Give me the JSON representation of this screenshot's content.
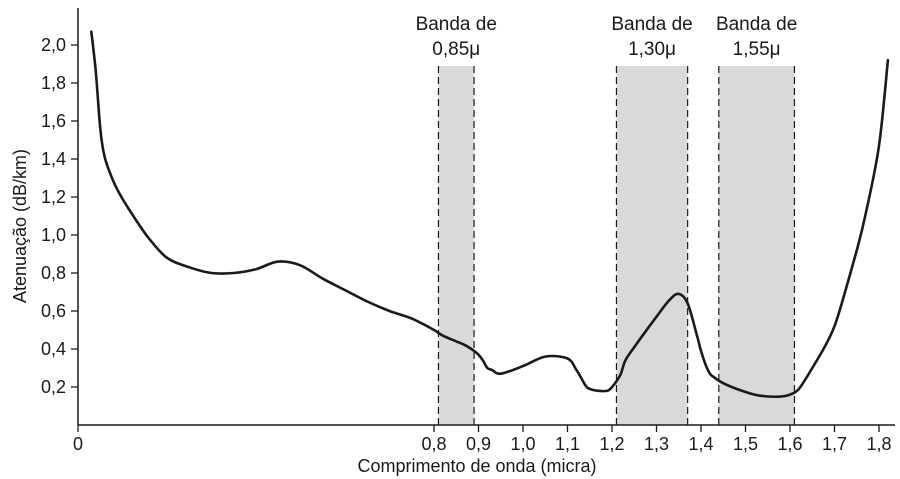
{
  "chart_data": {
    "type": "line",
    "xlabel": "Comprimento de onda (micra)",
    "ylabel": "Atenuação (dB/km)",
    "xlim": [
      0,
      1.82
    ],
    "ylim": [
      0,
      2.1
    ],
    "x_ticks": [
      "0",
      "0,8",
      "0,9",
      "1,0",
      "1,1",
      "1,2",
      "1,3",
      "1,4",
      "1,5",
      "1,6",
      "1,7",
      "1,8"
    ],
    "x_tick_values": [
      0,
      0.8,
      0.9,
      1.0,
      1.1,
      1.2,
      1.3,
      1.4,
      1.5,
      1.6,
      1.7,
      1.8
    ],
    "y_ticks": [
      "0,2",
      "0,4",
      "0,6",
      "0,8",
      "1,0",
      "1,2",
      "1,4",
      "1,6",
      "1,8",
      "2,0"
    ],
    "y_tick_values": [
      0.2,
      0.4,
      0.6,
      0.8,
      1.0,
      1.2,
      1.4,
      1.6,
      1.8,
      2.0
    ],
    "bands": [
      {
        "line1": "Banda de",
        "line2": "0,85μ",
        "x_start": 0.81,
        "x_end": 0.89
      },
      {
        "line1": "Banda de",
        "line2": "1,30μ",
        "x_start": 1.21,
        "x_end": 1.37
      },
      {
        "line1": "Banda de",
        "line2": "1,55μ",
        "x_start": 1.44,
        "x_end": 1.61
      }
    ],
    "band_color": "#d9d9d9",
    "line_color": "#1a1a1a",
    "grid": false,
    "series": [
      {
        "x": [
          0.03,
          0.04,
          0.05,
          0.06,
          0.08,
          0.1,
          0.13,
          0.16,
          0.2,
          0.25,
          0.3,
          0.35,
          0.4,
          0.45,
          0.5,
          0.55,
          0.6,
          0.65,
          0.7,
          0.75,
          0.8,
          0.82,
          0.85,
          0.87,
          0.89,
          0.9,
          0.91,
          0.92,
          0.93,
          0.95,
          1.0,
          1.05,
          1.1,
          1.12,
          1.14,
          1.15,
          1.17,
          1.19,
          1.2,
          1.21,
          1.22,
          1.23,
          1.25,
          1.3,
          1.33,
          1.35,
          1.37,
          1.39,
          1.4,
          1.41,
          1.42,
          1.43,
          1.45,
          1.48,
          1.52,
          1.55,
          1.58,
          1.6,
          1.62,
          1.65,
          1.68,
          1.7,
          1.72,
          1.75,
          1.77,
          1.8,
          1.82
        ],
        "y": [
          2.07,
          1.86,
          1.56,
          1.41,
          1.28,
          1.19,
          1.08,
          0.98,
          0.88,
          0.83,
          0.8,
          0.8,
          0.82,
          0.86,
          0.84,
          0.77,
          0.71,
          0.65,
          0.6,
          0.56,
          0.5,
          0.47,
          0.44,
          0.42,
          0.39,
          0.37,
          0.34,
          0.3,
          0.29,
          0.27,
          0.31,
          0.36,
          0.35,
          0.29,
          0.21,
          0.19,
          0.18,
          0.18,
          0.2,
          0.23,
          0.27,
          0.34,
          0.41,
          0.57,
          0.66,
          0.69,
          0.64,
          0.48,
          0.39,
          0.32,
          0.27,
          0.25,
          0.22,
          0.19,
          0.16,
          0.15,
          0.15,
          0.16,
          0.19,
          0.3,
          0.42,
          0.52,
          0.67,
          0.92,
          1.11,
          1.47,
          1.92
        ]
      }
    ]
  }
}
